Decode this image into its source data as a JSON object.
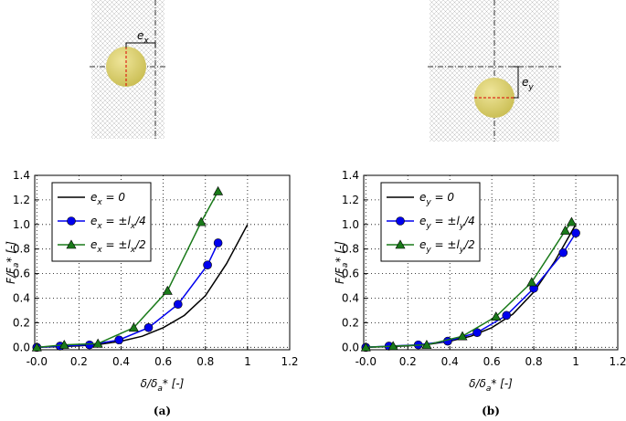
{
  "diagrams": [
    {
      "label": "e_x"
    },
    {
      "label": "e_y"
    }
  ],
  "chart_data": [
    {
      "type": "line",
      "panel_label": "(a)",
      "xlabel": "δ/δ_a* [-]",
      "ylabel": "F/F_a* [-]",
      "xlim": [
        -0.01,
        1.2
      ],
      "ylim": [
        -0.02,
        1.4
      ],
      "xticks": [
        {
          "value": 0,
          "label": "-0.0"
        },
        0.2,
        0.4,
        0.6,
        0.8,
        1.0,
        1.2
      ],
      "yticks": [
        {
          "value": 0,
          "label": "0.0"
        },
        0.2,
        0.4,
        0.6,
        0.8,
        {
          "value": 1,
          "label": "1.0"
        },
        1.2,
        1.4
      ],
      "grid": true,
      "legend": "upper left",
      "series": [
        {
          "name": "e_x = 0",
          "color": "#000000",
          "marker": null,
          "x": [
            0,
            0.1,
            0.2,
            0.3,
            0.4,
            0.5,
            0.6,
            0.7,
            0.8,
            0.9,
            1.0
          ],
          "values": [
            0,
            0.005,
            0.012,
            0.025,
            0.05,
            0.09,
            0.16,
            0.26,
            0.42,
            0.68,
            1.0
          ]
        },
        {
          "name": "e_x = ±l_x/4",
          "color": "#0000ee",
          "marker": "circle",
          "x": [
            0,
            0.11,
            0.25,
            0.39,
            0.53,
            0.67,
            0.81,
            0.86
          ],
          "values": [
            0,
            0.01,
            0.02,
            0.06,
            0.16,
            0.35,
            0.67,
            0.85
          ]
        },
        {
          "name": "e_x = ±l_x/2",
          "color": "#1a7a1a",
          "marker": "triangle",
          "x": [
            0,
            0.13,
            0.29,
            0.46,
            0.62,
            0.78,
            0.86
          ],
          "values": [
            0,
            0.02,
            0.03,
            0.16,
            0.46,
            1.02,
            1.27
          ]
        }
      ]
    },
    {
      "type": "line",
      "panel_label": "(b)",
      "xlabel": "δ/δ_a* [-]",
      "ylabel": "F/F_a* [-]",
      "xlim": [
        -0.01,
        1.2
      ],
      "ylim": [
        -0.02,
        1.4
      ],
      "xticks": [
        {
          "value": 0,
          "label": "-0.0"
        },
        0.2,
        0.4,
        0.6,
        0.8,
        1.0,
        1.2
      ],
      "yticks": [
        {
          "value": 0,
          "label": "0.0"
        },
        0.2,
        0.4,
        0.6,
        0.8,
        {
          "value": 1,
          "label": "1.0"
        },
        1.2,
        1.4
      ],
      "grid": true,
      "legend": "upper left",
      "series": [
        {
          "name": "e_y = 0",
          "color": "#000000",
          "marker": null,
          "x": [
            0,
            0.1,
            0.2,
            0.3,
            0.4,
            0.5,
            0.6,
            0.7,
            0.8,
            0.9,
            1.0
          ],
          "values": [
            0,
            0.005,
            0.012,
            0.025,
            0.05,
            0.09,
            0.16,
            0.27,
            0.45,
            0.7,
            1.0
          ]
        },
        {
          "name": "e_y = ±l_y/4",
          "color": "#0000ee",
          "marker": "circle",
          "x": [
            0,
            0.11,
            0.25,
            0.39,
            0.53,
            0.67,
            0.8,
            0.94,
            1.0
          ],
          "values": [
            0,
            0.01,
            0.02,
            0.05,
            0.12,
            0.26,
            0.48,
            0.77,
            0.93
          ]
        },
        {
          "name": "e_y = ±l_y/2",
          "color": "#1a7a1a",
          "marker": "triangle",
          "x": [
            0,
            0.13,
            0.29,
            0.46,
            0.62,
            0.79,
            0.95,
            0.98
          ],
          "values": [
            0,
            0.01,
            0.02,
            0.09,
            0.25,
            0.53,
            0.95,
            1.02
          ]
        }
      ]
    }
  ]
}
